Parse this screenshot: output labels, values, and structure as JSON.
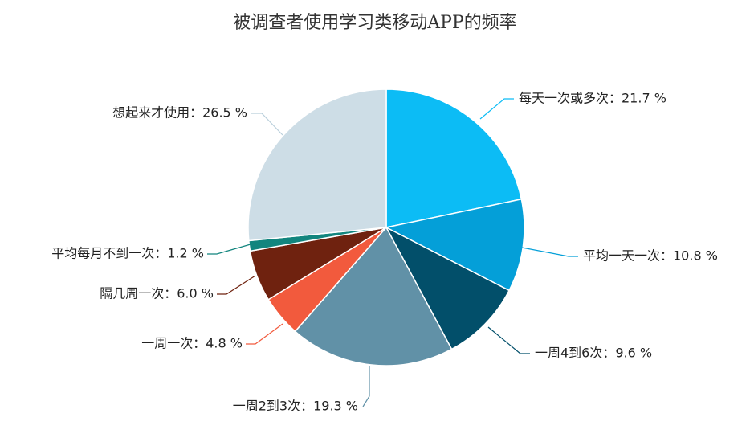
{
  "chart_data": {
    "type": "pie",
    "title": "被调查者使用学习类移动APP的频率",
    "unit": "%",
    "start_angle_deg": 0,
    "direction": "clockwise",
    "legend": "none",
    "slices": [
      {
        "label": "每天一次或多次",
        "value": 21.7,
        "display": "每天一次或多次：21.7 %",
        "color": "#0cbcf5"
      },
      {
        "label": "平均一天一次",
        "value": 10.8,
        "display": "平均一天一次：10.8 %",
        "color": "#049fd8"
      },
      {
        "label": "一周4到6次",
        "value": 9.6,
        "display": "一周4到6次：9.6 %",
        "color": "#024f6a"
      },
      {
        "label": "一周2到3次",
        "value": 19.3,
        "display": "一周2到3次：19.3 %",
        "color": "#6191a7"
      },
      {
        "label": "一周一次",
        "value": 4.8,
        "display": "一周一次：4.8 %",
        "color": "#f25a3d"
      },
      {
        "label": "隔几周一次",
        "value": 6.0,
        "display": "隔几周一次：6.0 %",
        "color": "#6f220f"
      },
      {
        "label": "平均每月不到一次",
        "value": 1.2,
        "display": "平均每月不到一次：1.2 %",
        "color": "#12857e"
      },
      {
        "label": "想起来才使用",
        "value": 26.5,
        "display": "想起来才使用：26.5 %",
        "color": "#cddde6"
      }
    ]
  }
}
